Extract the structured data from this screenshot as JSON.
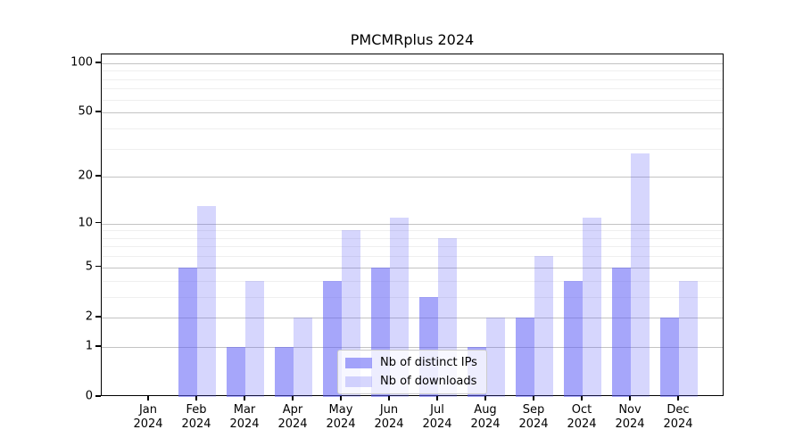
{
  "chart_data": {
    "type": "bar",
    "title": "PMCMRplus 2024",
    "categories": [
      "Jan",
      "Feb",
      "Mar",
      "Apr",
      "May",
      "Jun",
      "Jul",
      "Aug",
      "Sep",
      "Oct",
      "Nov",
      "Dec"
    ],
    "year_label": "2024",
    "series": [
      {
        "name": "Nb of distinct IPs",
        "values": [
          0,
          5,
          1,
          1,
          4,
          5,
          3,
          1,
          2,
          4,
          5,
          2
        ],
        "color": "rgba(92,92,246,0.55)"
      },
      {
        "name": "Nb of downloads",
        "values": [
          0,
          13,
          4,
          2,
          9,
          11,
          8,
          2,
          6,
          11,
          28,
          4
        ],
        "color": "rgba(92,92,246,0.25)"
      }
    ],
    "yscale": "log1p",
    "y_ticks": [
      0,
      1,
      2,
      5,
      10,
      20,
      50,
      100
    ],
    "y_minor_ticks": [
      3,
      4,
      6,
      7,
      8,
      9,
      30,
      40,
      60,
      70,
      80,
      90
    ],
    "y_axis_max": 113,
    "grid": true,
    "legend_position": "lower-center",
    "colors": {
      "major_grid": "#c3c3c3",
      "minor_grid": "#efefef",
      "axis": "#000000"
    }
  }
}
